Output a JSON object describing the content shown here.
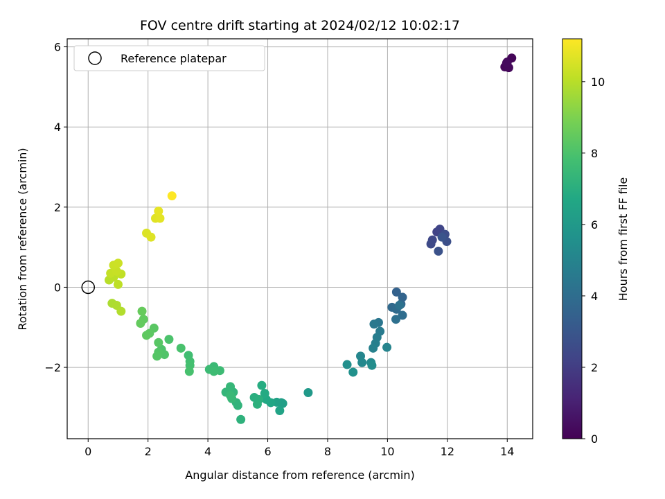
{
  "chart_data": {
    "type": "scatter",
    "title": "FOV centre drift starting at 2024/02/12 10:02:17",
    "xlabel": "Angular distance from reference (arcmin)",
    "ylabel": "Rotation from reference (arcmin)",
    "xlim": [
      -0.7,
      14.85
    ],
    "ylim": [
      -3.78,
      6.2
    ],
    "xticks": [
      0,
      2,
      4,
      6,
      8,
      10,
      12,
      14
    ],
    "yticks": [
      -2,
      0,
      2,
      4,
      6
    ],
    "xtick_labels": [
      "0",
      "2",
      "4",
      "6",
      "8",
      "10",
      "12",
      "14"
    ],
    "ytick_labels": [
      "−2",
      "0",
      "2",
      "4",
      "6"
    ],
    "grid": true,
    "legend": {
      "position": "top-left",
      "label": "Reference platepar"
    },
    "reference_point": {
      "x": 0,
      "y": 0
    },
    "colorbar": {
      "label": "Hours from first FF file",
      "min": 0,
      "max": 11.2,
      "colormap": "viridis",
      "ticks": [
        0,
        2,
        4,
        6,
        8,
        10
      ],
      "tick_labels": [
        "0",
        "2",
        "4",
        "6",
        "8",
        "10"
      ]
    },
    "points": [
      [
        14.0,
        5.62,
        0.1
      ],
      [
        14.15,
        5.72,
        0.15
      ],
      [
        13.92,
        5.5,
        0.2
      ],
      [
        14.05,
        5.48,
        0.25
      ],
      [
        13.98,
        5.6,
        0.3
      ],
      [
        11.65,
        1.38,
        2.2
      ],
      [
        11.75,
        1.45,
        2.3
      ],
      [
        11.5,
        1.18,
        2.4
      ],
      [
        11.45,
        1.08,
        2.5
      ],
      [
        11.92,
        1.32,
        2.6
      ],
      [
        11.98,
        1.14,
        2.7
      ],
      [
        11.7,
        0.9,
        2.8
      ],
      [
        11.82,
        1.25,
        2.9
      ],
      [
        10.3,
        -0.12,
        3.5
      ],
      [
        10.5,
        -0.25,
        3.6
      ],
      [
        10.45,
        -0.42,
        3.7
      ],
      [
        10.15,
        -0.5,
        3.8
      ],
      [
        10.3,
        -0.55,
        3.9
      ],
      [
        10.5,
        -0.7,
        4.0
      ],
      [
        10.28,
        -0.8,
        4.1
      ],
      [
        10.4,
        -0.45,
        4.2
      ],
      [
        9.7,
        -0.88,
        4.4
      ],
      [
        9.55,
        -0.92,
        4.5
      ],
      [
        9.75,
        -1.1,
        4.6
      ],
      [
        9.65,
        -1.25,
        4.7
      ],
      [
        9.6,
        -1.4,
        4.8
      ],
      [
        9.52,
        -1.52,
        4.9
      ],
      [
        9.98,
        -1.5,
        5.0
      ],
      [
        9.1,
        -1.72,
        5.1
      ],
      [
        9.15,
        -1.88,
        5.2
      ],
      [
        9.45,
        -1.88,
        5.3
      ],
      [
        9.48,
        -1.95,
        5.4
      ],
      [
        8.65,
        -1.93,
        5.5
      ],
      [
        8.85,
        -2.12,
        5.6
      ],
      [
        7.35,
        -2.63,
        6.0
      ],
      [
        6.45,
        -2.88,
        6.2
      ],
      [
        6.5,
        -2.9,
        6.3
      ],
      [
        6.3,
        -2.87,
        6.4
      ],
      [
        6.4,
        -3.08,
        6.5
      ],
      [
        6.1,
        -2.88,
        6.6
      ],
      [
        5.95,
        -2.8,
        6.7
      ],
      [
        5.9,
        -2.65,
        6.8
      ],
      [
        5.8,
        -2.45,
        6.9
      ],
      [
        5.55,
        -2.75,
        7.0
      ],
      [
        5.7,
        -2.8,
        7.05
      ],
      [
        5.65,
        -2.92,
        7.1
      ],
      [
        5.1,
        -3.3,
        7.15
      ],
      [
        4.95,
        -2.88,
        7.2
      ],
      [
        5.0,
        -2.95,
        7.25
      ],
      [
        4.85,
        -2.62,
        7.3
      ],
      [
        4.6,
        -2.62,
        7.35
      ],
      [
        4.75,
        -2.48,
        7.4
      ],
      [
        4.8,
        -2.78,
        7.45
      ],
      [
        4.75,
        -2.7,
        7.5
      ],
      [
        4.2,
        -1.98,
        7.55
      ],
      [
        4.4,
        -2.08,
        7.6
      ],
      [
        4.05,
        -2.05,
        7.62
      ],
      [
        4.2,
        -2.1,
        7.65
      ],
      [
        3.35,
        -1.7,
        7.75
      ],
      [
        3.4,
        -1.85,
        7.8
      ],
      [
        3.4,
        -1.95,
        7.85
      ],
      [
        3.38,
        -2.1,
        7.9
      ],
      [
        3.1,
        -1.52,
        7.95
      ],
      [
        2.7,
        -1.3,
        8.0
      ],
      [
        2.45,
        -1.55,
        8.05
      ],
      [
        2.55,
        -1.68,
        8.1
      ],
      [
        2.35,
        -1.62,
        8.15
      ],
      [
        2.3,
        -1.72,
        8.2
      ],
      [
        2.35,
        -1.38,
        8.25
      ],
      [
        2.2,
        -1.02,
        8.3
      ],
      [
        2.05,
        -1.15,
        8.35
      ],
      [
        1.95,
        -1.2,
        8.4
      ],
      [
        1.85,
        -0.8,
        8.45
      ],
      [
        1.75,
        -0.9,
        8.5
      ],
      [
        1.8,
        -0.6,
        8.55
      ],
      [
        0.8,
        -0.4,
        9.8
      ],
      [
        0.95,
        -0.45,
        9.85
      ],
      [
        1.1,
        -0.6,
        9.9
      ],
      [
        0.7,
        0.18,
        10.0
      ],
      [
        0.85,
        0.25,
        10.05
      ],
      [
        1.0,
        0.07,
        10.1
      ],
      [
        1.1,
        0.33,
        10.15
      ],
      [
        0.75,
        0.35,
        10.2
      ],
      [
        0.95,
        0.4,
        10.25
      ],
      [
        0.85,
        0.55,
        10.3
      ],
      [
        1.0,
        0.6,
        10.35
      ],
      [
        1.95,
        1.35,
        10.6
      ],
      [
        2.1,
        1.25,
        10.65
      ],
      [
        2.25,
        1.72,
        10.7
      ],
      [
        2.4,
        1.72,
        10.75
      ],
      [
        2.35,
        1.9,
        10.8
      ],
      [
        2.8,
        2.28,
        11.2
      ]
    ]
  }
}
